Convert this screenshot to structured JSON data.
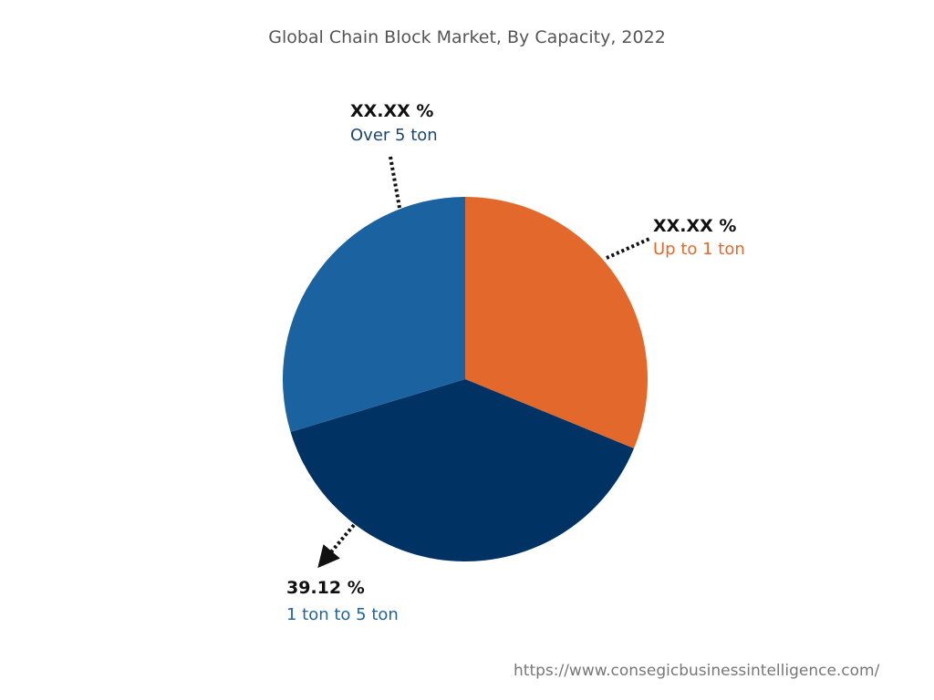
{
  "chart_data": {
    "type": "pie",
    "title": "Global Chain Block Market, By Capacity, 2022",
    "slices": [
      {
        "label": "Up to 1 ton",
        "value_label": "XX.XX %",
        "value": 31.2,
        "color": "#E2692B",
        "label_color": "#E2692B"
      },
      {
        "label": "1 ton to 5 ton",
        "value_label": "39.12 %",
        "value": 39.12,
        "color": "#003264",
        "label_color": "#1F64A0"
      },
      {
        "label": "Over 5 ton",
        "value_label": "XX.XX %",
        "value": 29.68,
        "color": "#1A63A0",
        "label_color": "#1C4670"
      }
    ],
    "start_angle": "top",
    "direction": "clockwise",
    "legend": "none"
  },
  "source": "https://www.consegicbusinessintelligence.com/"
}
